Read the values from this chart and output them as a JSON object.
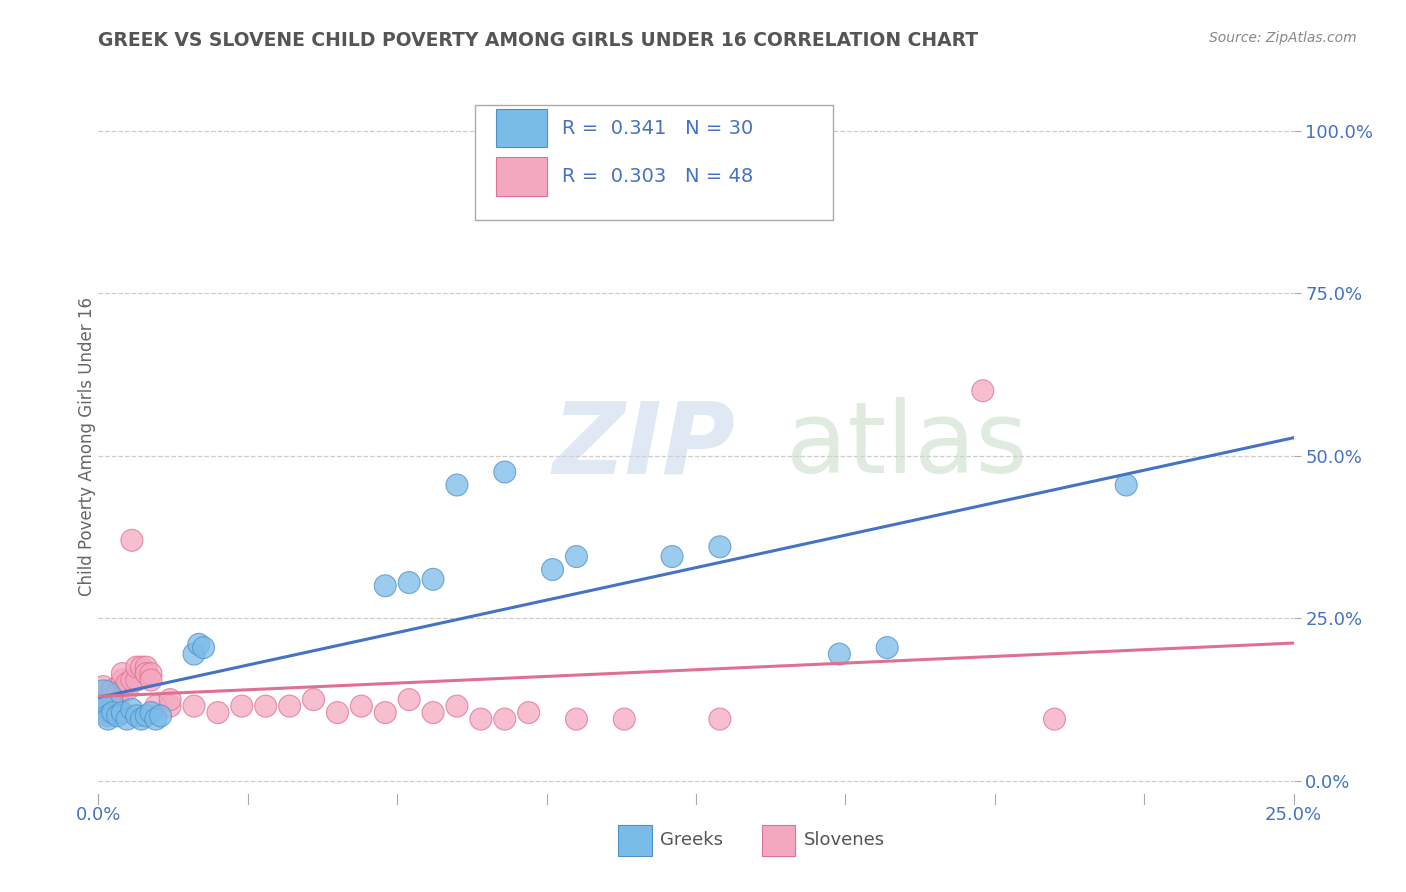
{
  "title": "GREEK VS SLOVENE CHILD POVERTY AMONG GIRLS UNDER 16 CORRELATION CHART",
  "source": "Source: ZipAtlas.com",
  "ylabel": "Child Poverty Among Girls Under 16",
  "greek_color": "#7abce8",
  "greek_edge_color": "#5090c8",
  "slovene_color": "#f4a8c0",
  "slovene_edge_color": "#e07090",
  "trendline_greek": "#4472c4",
  "trendline_slovene": "#e07090",
  "greek_points": [
    [
      0.001,
      0.125
    ],
    [
      0.001,
      0.115
    ],
    [
      0.002,
      0.1
    ],
    [
      0.002,
      0.095
    ],
    [
      0.003,
      0.105
    ],
    [
      0.004,
      0.1
    ],
    [
      0.005,
      0.105
    ],
    [
      0.006,
      0.095
    ],
    [
      0.007,
      0.11
    ],
    [
      0.008,
      0.1
    ],
    [
      0.009,
      0.095
    ],
    [
      0.01,
      0.1
    ],
    [
      0.011,
      0.105
    ],
    [
      0.012,
      0.095
    ],
    [
      0.013,
      0.1
    ],
    [
      0.02,
      0.195
    ],
    [
      0.021,
      0.21
    ],
    [
      0.022,
      0.205
    ],
    [
      0.06,
      0.3
    ],
    [
      0.065,
      0.305
    ],
    [
      0.07,
      0.31
    ],
    [
      0.075,
      0.455
    ],
    [
      0.085,
      0.475
    ],
    [
      0.095,
      0.325
    ],
    [
      0.1,
      0.345
    ],
    [
      0.12,
      0.345
    ],
    [
      0.13,
      0.36
    ],
    [
      0.155,
      0.195
    ],
    [
      0.165,
      0.205
    ],
    [
      0.215,
      0.455
    ]
  ],
  "greek_sizes": [
    800,
    250,
    250,
    250,
    250,
    250,
    250,
    250,
    250,
    250,
    250,
    250,
    250,
    250,
    250,
    250,
    250,
    250,
    250,
    250,
    250,
    250,
    250,
    250,
    250,
    250,
    250,
    250,
    250,
    250
  ],
  "slovene_points": [
    [
      0.001,
      0.125
    ],
    [
      0.001,
      0.135
    ],
    [
      0.001,
      0.145
    ],
    [
      0.002,
      0.105
    ],
    [
      0.002,
      0.115
    ],
    [
      0.002,
      0.125
    ],
    [
      0.003,
      0.115
    ],
    [
      0.003,
      0.13
    ],
    [
      0.003,
      0.14
    ],
    [
      0.004,
      0.115
    ],
    [
      0.004,
      0.125
    ],
    [
      0.004,
      0.135
    ],
    [
      0.005,
      0.155
    ],
    [
      0.005,
      0.165
    ],
    [
      0.006,
      0.14
    ],
    [
      0.006,
      0.15
    ],
    [
      0.007,
      0.155
    ],
    [
      0.007,
      0.37
    ],
    [
      0.008,
      0.155
    ],
    [
      0.008,
      0.175
    ],
    [
      0.009,
      0.175
    ],
    [
      0.01,
      0.175
    ],
    [
      0.01,
      0.165
    ],
    [
      0.011,
      0.165
    ],
    [
      0.011,
      0.155
    ],
    [
      0.012,
      0.115
    ],
    [
      0.015,
      0.115
    ],
    [
      0.015,
      0.125
    ],
    [
      0.02,
      0.115
    ],
    [
      0.025,
      0.105
    ],
    [
      0.03,
      0.115
    ],
    [
      0.035,
      0.115
    ],
    [
      0.04,
      0.115
    ],
    [
      0.045,
      0.125
    ],
    [
      0.05,
      0.105
    ],
    [
      0.055,
      0.115
    ],
    [
      0.06,
      0.105
    ],
    [
      0.065,
      0.125
    ],
    [
      0.07,
      0.105
    ],
    [
      0.075,
      0.115
    ],
    [
      0.08,
      0.095
    ],
    [
      0.085,
      0.095
    ],
    [
      0.09,
      0.105
    ],
    [
      0.1,
      0.095
    ],
    [
      0.11,
      0.095
    ],
    [
      0.13,
      0.095
    ],
    [
      0.185,
      0.6
    ],
    [
      0.2,
      0.095
    ]
  ],
  "slovene_sizes": [
    250,
    250,
    250,
    250,
    250,
    250,
    250,
    250,
    250,
    250,
    250,
    250,
    250,
    250,
    250,
    250,
    250,
    250,
    250,
    250,
    250,
    250,
    250,
    250,
    250,
    250,
    250,
    250,
    250,
    250,
    250,
    250,
    250,
    250,
    250,
    250,
    250,
    250,
    250,
    250,
    250,
    250,
    250,
    250,
    250,
    250,
    250,
    250
  ],
  "xlim": [
    0.0,
    0.25
  ],
  "ylim": [
    -0.02,
    1.05
  ],
  "ytick_vals": [
    0.0,
    0.25,
    0.5,
    0.75,
    1.0
  ],
  "ytick_labels": [
    "0.0%",
    "25.0%",
    "50.0%",
    "75.0%",
    "100.0%"
  ],
  "xtick_vals": [
    0.0,
    0.25
  ],
  "xtick_labels": [
    "0.0%",
    "25.0%"
  ],
  "legend_r1_label": "R =  0.341   N = 30",
  "legend_r2_label": "R =  0.303   N = 48",
  "tick_color": "#4472c4",
  "grid_color": "#cccccc",
  "watermark_zip": "ZIP",
  "watermark_atlas": "atlas"
}
